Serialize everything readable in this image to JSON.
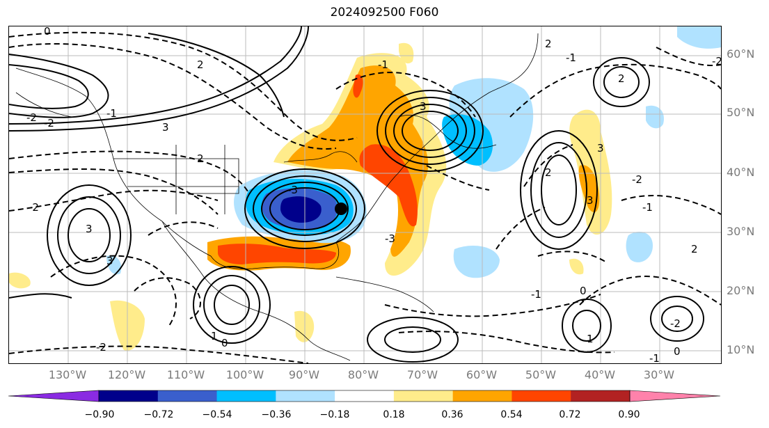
{
  "title": "2024092500 F060",
  "lat_labels": [
    "60°N",
    "50°N",
    "40°N",
    "30°N",
    "20°N",
    "10°N"
  ],
  "lon_labels": [
    "130°W",
    "120°W",
    "110°W",
    "100°W",
    "90°W",
    "80°W",
    "70°W",
    "60°W",
    "50°W",
    "40°W",
    "30°W"
  ],
  "colorbar": {
    "ticks": [
      "−0.90",
      "−0.72",
      "−0.54",
      "−0.36",
      "−0.18",
      "0.18",
      "0.36",
      "0.54",
      "0.72",
      "0.90"
    ],
    "colors": [
      "#8a2be2",
      "#00008b",
      "#3a5fcd",
      "#00bfff",
      "#b0e2ff",
      "#ffffff",
      "#ffec8b",
      "#ffa500",
      "#ff4500",
      "#b22222",
      "#ff82ab"
    ]
  },
  "map": {
    "contour_labels": [
      "0",
      "2",
      "2",
      "3",
      "-2",
      "-2",
      "-1",
      "2",
      "3",
      "-2",
      "-3",
      "-1",
      "3",
      "-3",
      "1",
      "0",
      "-2",
      "2",
      "-2",
      "3",
      "-1",
      "-1",
      "2",
      "-2",
      "3",
      "3",
      "2",
      "-1",
      "0",
      "1",
      "-2",
      "-1",
      "0"
    ],
    "marker": "storm-center-dot"
  }
}
